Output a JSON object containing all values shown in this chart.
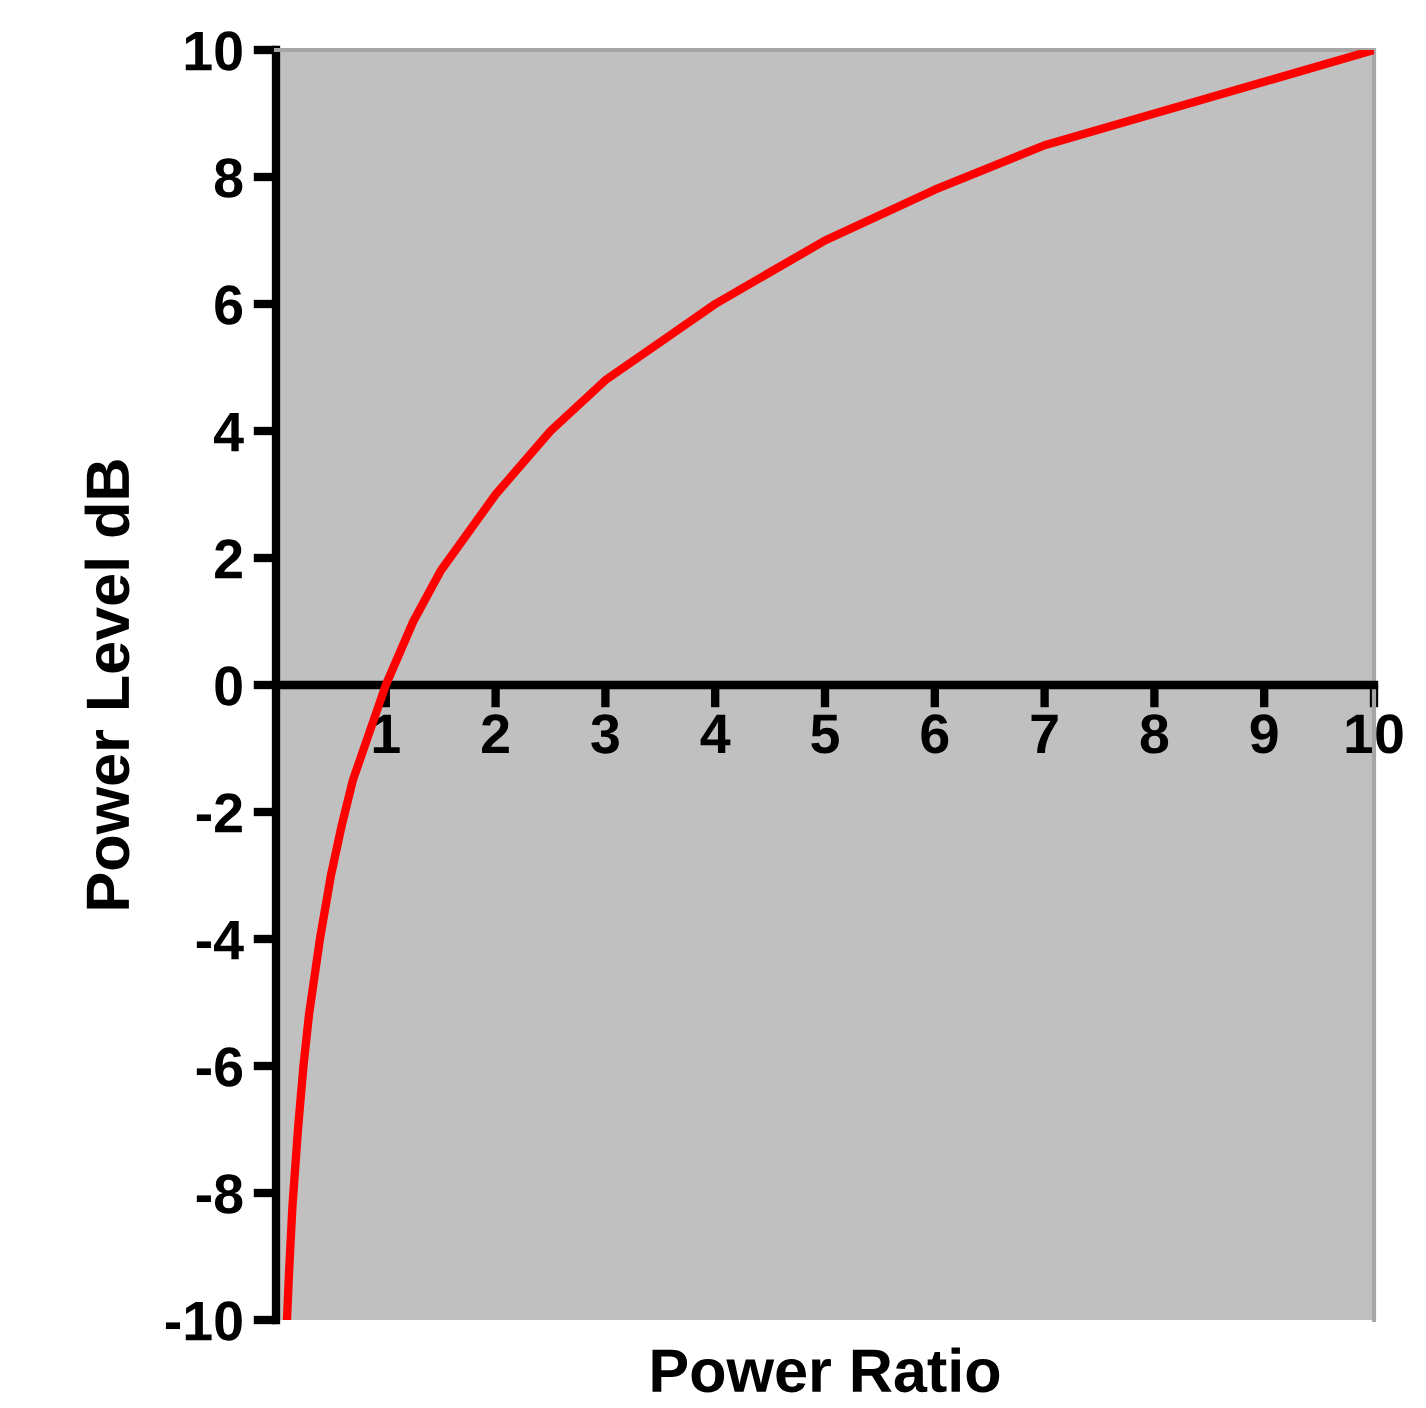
{
  "chart_data": {
    "type": "line",
    "xlabel": "Power Ratio",
    "ylabel": "Power Level dB",
    "series": [
      {
        "color": "#ff0000",
        "x": [
          0.1,
          0.12,
          0.15,
          0.2,
          0.25,
          0.3,
          0.4,
          0.5,
          0.6,
          0.7,
          0.8,
          0.9,
          1,
          1.25,
          1.5,
          2,
          2.5,
          3,
          3.5,
          4,
          5,
          6,
          7,
          8,
          9,
          10
        ],
        "values": [
          -10,
          -9.2,
          -8.2,
          -7,
          -6,
          -5.2,
          -4,
          -3,
          -2.2,
          -1.5,
          -1,
          -0.5,
          0,
          1,
          1.8,
          3,
          4,
          4.8,
          5.4,
          6,
          7,
          7.8,
          8.5,
          9,
          9.5,
          10
        ]
      }
    ],
    "xlim": [
      0,
      10
    ],
    "ylim": [
      -10,
      10
    ],
    "xticks": [
      1,
      2,
      3,
      4,
      5,
      6,
      7,
      8,
      9,
      10
    ],
    "yticks": [
      -10,
      -8,
      -6,
      -4,
      -2,
      0,
      2,
      4,
      6,
      8,
      10
    ],
    "grid": false,
    "legend": false,
    "marker": "none",
    "line_style": "solid"
  }
}
